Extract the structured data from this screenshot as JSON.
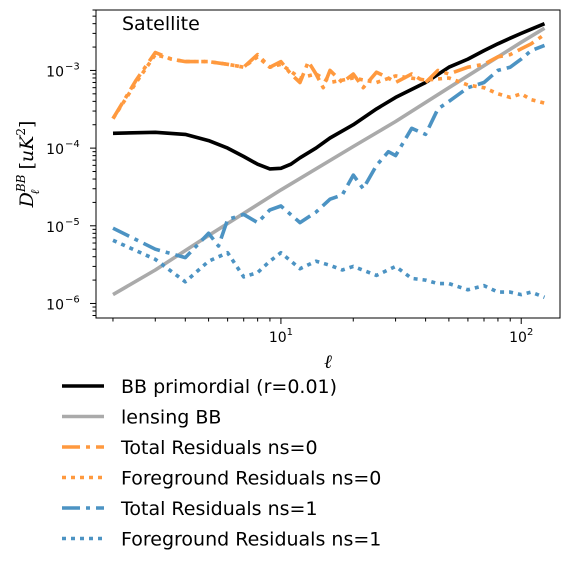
{
  "chart_data": {
    "type": "line",
    "annotation": "Satellite",
    "xlabel": "ℓ",
    "ylabel": "D_ℓ^{BB} [uK²]",
    "xscale": "log",
    "yscale": "log",
    "xlim": [
      1.7,
      145
    ],
    "ylim": [
      6.5e-07,
      0.006
    ],
    "x_ticks": [
      {
        "value": 10,
        "base": "10",
        "exp": "1"
      },
      {
        "value": 100,
        "base": "10",
        "exp": "2"
      }
    ],
    "y_ticks": [
      {
        "value": 1e-06,
        "base": "10",
        "exp": "−6"
      },
      {
        "value": 1e-05,
        "base": "10",
        "exp": "−5"
      },
      {
        "value": 0.0001,
        "base": "10",
        "exp": "−4"
      },
      {
        "value": 0.001,
        "base": "10",
        "exp": "−3"
      }
    ],
    "legend_position": "below",
    "series": [
      {
        "name": "BB primordial (r=0.01)",
        "color": "#000000",
        "style": "solid",
        "x": [
          2,
          3,
          4,
          5,
          6,
          7,
          8,
          9,
          10,
          11,
          12,
          14,
          16,
          20,
          25,
          30,
          40,
          50,
          60,
          70,
          80,
          90,
          100,
          110,
          125
        ],
        "y": [
          0.000155,
          0.00016,
          0.00015,
          0.000125,
          0.0001,
          7.8e-05,
          6.2e-05,
          5.4e-05,
          5.5e-05,
          6.2e-05,
          7.5e-05,
          0.0001,
          0.000135,
          0.0002,
          0.00032,
          0.00045,
          0.0007,
          0.0011,
          0.0014,
          0.0018,
          0.0022,
          0.0026,
          0.003,
          0.0034,
          0.004
        ]
      },
      {
        "name": "lensing BB",
        "color": "#aaaaaa",
        "style": "solid",
        "x": [
          2,
          3,
          5,
          10,
          20,
          30,
          50,
          100,
          125
        ],
        "y": [
          1.3e-06,
          2.7e-06,
          7.5e-06,
          2.9e-05,
          0.000105,
          0.00022,
          0.0006,
          0.0023,
          0.0035
        ]
      },
      {
        "name": "Total Residuals ns=0",
        "color": "#ff993e",
        "style": "dashdot",
        "x": [
          2,
          2.5,
          3,
          3.5,
          4,
          5,
          6,
          7,
          8,
          9,
          10,
          11,
          12,
          13,
          14,
          15,
          16,
          18,
          20,
          22,
          25,
          28,
          30,
          35,
          40,
          45,
          50,
          60,
          70,
          80,
          90,
          100,
          110,
          125
        ],
        "y": [
          0.00024,
          0.00075,
          0.0017,
          0.0014,
          0.0013,
          0.0013,
          0.0012,
          0.0011,
          0.0016,
          0.0011,
          0.0013,
          0.0009,
          0.0007,
          0.0013,
          0.0009,
          0.0006,
          0.001,
          0.0007,
          0.0009,
          0.0006,
          0.00095,
          0.0008,
          0.0007,
          0.0009,
          0.0007,
          0.001,
          0.0009,
          0.0011,
          0.0012,
          0.0015,
          0.0016,
          0.0019,
          0.0022,
          0.0029
        ]
      },
      {
        "name": "Foreground Residuals ns=0",
        "color": "#ff993e",
        "style": "dotted",
        "x": [
          2,
          2.5,
          3,
          3.5,
          4,
          5,
          6,
          7,
          8,
          9,
          10,
          12,
          14,
          16,
          20,
          25,
          30,
          40,
          50,
          60,
          70,
          80,
          90,
          100,
          110,
          125
        ],
        "y": [
          0.00024,
          0.0007,
          0.0016,
          0.0014,
          0.0013,
          0.0013,
          0.0012,
          0.0011,
          0.0015,
          0.0011,
          0.0012,
          0.0008,
          0.0009,
          0.0007,
          0.0008,
          0.0007,
          0.00085,
          0.00075,
          0.0008,
          0.00065,
          0.0006,
          0.0005,
          0.00045,
          0.0005,
          0.00042,
          0.00038
        ]
      },
      {
        "name": "Total Residuals ns=1",
        "color": "#4c93c3",
        "style": "dashdot",
        "x": [
          2,
          3,
          4,
          5,
          5.5,
          6,
          7,
          8,
          9,
          10,
          12,
          14,
          16,
          18,
          20,
          22,
          25,
          28,
          30,
          35,
          40,
          45,
          50,
          60,
          70,
          80,
          90,
          100,
          110,
          125
        ],
        "y": [
          9.3e-06,
          5e-06,
          3.9e-06,
          8e-06,
          5.5e-06,
          1.2e-05,
          1.4e-05,
          1.1e-05,
          1.6e-05,
          1.8e-05,
          1.1e-05,
          1.5e-05,
          2.2e-05,
          2.5e-05,
          4.5e-05,
          3e-05,
          6e-05,
          9e-05,
          8e-05,
          0.00018,
          0.00015,
          0.00032,
          0.0004,
          0.0006,
          0.0007,
          0.001,
          0.0011,
          0.0014,
          0.0018,
          0.0021
        ]
      },
      {
        "name": "Foreground Residuals ns=1",
        "color": "#4c93c3",
        "style": "dotted",
        "x": [
          2,
          3,
          4,
          5,
          6,
          7,
          8,
          9,
          10,
          12,
          14,
          16,
          18,
          20,
          25,
          30,
          35,
          40,
          45,
          50,
          60,
          70,
          80,
          90,
          100,
          110,
          125
        ],
        "y": [
          6.5e-06,
          3.7e-06,
          1.9e-06,
          3.5e-06,
          4.5e-06,
          2.2e-06,
          2.5e-06,
          3.5e-06,
          4.5e-06,
          2.8e-06,
          3.5e-06,
          3.1e-06,
          2.7e-06,
          3e-06,
          2.3e-06,
          3e-06,
          2.1e-06,
          2e-06,
          1.8e-06,
          1.8e-06,
          1.5e-06,
          1.7e-06,
          1.4e-06,
          1.4e-06,
          1.3e-06,
          1.4e-06,
          1.2e-06
        ]
      }
    ]
  }
}
